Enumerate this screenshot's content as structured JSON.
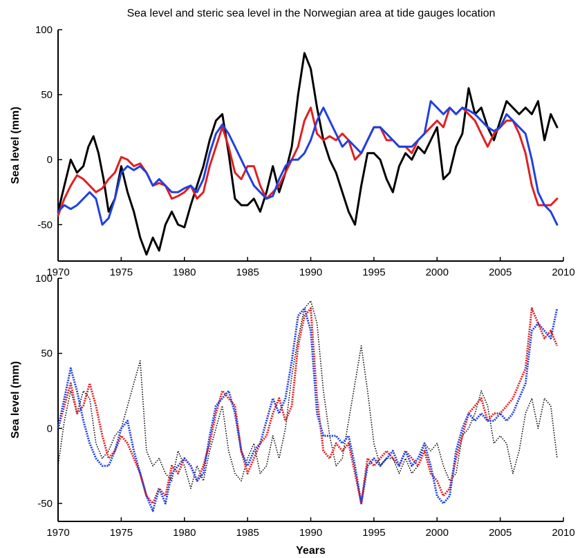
{
  "figure": {
    "title": "Sea level and steric sea level in the Norwegian area at tide gauges location"
  },
  "chart_data": [
    {
      "type": "line",
      "title": "Sea level and steric sea level in the Norwegian area at tide gauges location",
      "xlabel": "",
      "ylabel": "Sea level (mm)",
      "xlim": [
        1970,
        2010
      ],
      "ylim": [
        -78,
        100
      ],
      "xticks": [
        1970,
        1975,
        1980,
        1985,
        1990,
        1995,
        2000,
        2005,
        2010
      ],
      "yticks": [
        -50,
        0,
        50,
        100
      ],
      "grid": false,
      "series": [
        {
          "color": "#000000",
          "style": "solid",
          "x": [
            1970,
            1970.5,
            1971,
            1971.5,
            1972,
            1972.4,
            1972.8,
            1973.2,
            1973.6,
            1974,
            1974.5,
            1975,
            1975.5,
            1976,
            1976.5,
            1977,
            1977.5,
            1978,
            1978.5,
            1979,
            1979.5,
            1980,
            1980.5,
            1981,
            1981.5,
            1982,
            1982.5,
            1983,
            1983.5,
            1984,
            1984.5,
            1985,
            1985.5,
            1986,
            1986.5,
            1987,
            1987.5,
            1988,
            1988.5,
            1989,
            1989.5,
            1990,
            1990.5,
            1991,
            1991.5,
            1992,
            1992.5,
            1993,
            1993.5,
            1994,
            1994.5,
            1995,
            1995.5,
            1996,
            1996.5,
            1997,
            1997.5,
            1998,
            1998.5,
            1999,
            1999.5,
            2000,
            2000.5,
            2001,
            2001.5,
            2002,
            2002.5,
            2003,
            2003.5,
            2004,
            2004.5,
            2005,
            2005.5,
            2006,
            2006.5,
            2007,
            2007.5,
            2008,
            2008.5,
            2009,
            2009.5
          ],
          "values": [
            -40,
            -20,
            0,
            -10,
            -5,
            10,
            18,
            5,
            -15,
            -40,
            -30,
            -5,
            -25,
            -40,
            -60,
            -73,
            -60,
            -70,
            -50,
            -40,
            -50,
            -52,
            -35,
            -20,
            -5,
            15,
            30,
            35,
            5,
            -30,
            -35,
            -35,
            -30,
            -40,
            -25,
            -5,
            -25,
            -10,
            10,
            50,
            82,
            70,
            40,
            15,
            0,
            -10,
            -25,
            -40,
            -50,
            -20,
            5,
            5,
            0,
            -15,
            -25,
            -5,
            5,
            0,
            10,
            5,
            15,
            25,
            -15,
            -10,
            10,
            20,
            55,
            35,
            40,
            25,
            15,
            30,
            45,
            40,
            35,
            40,
            35,
            45,
            15,
            35,
            25
          ]
        },
        {
          "color": "#e02020",
          "style": "solid",
          "x": [
            1970,
            1970.5,
            1971,
            1971.5,
            1972,
            1972.5,
            1973,
            1973.5,
            1974,
            1974.5,
            1975,
            1975.5,
            1976,
            1976.5,
            1977,
            1977.5,
            1978,
            1978.5,
            1979,
            1979.5,
            1980,
            1980.5,
            1981,
            1981.5,
            1982,
            1982.5,
            1983,
            1983.5,
            1984,
            1984.5,
            1985,
            1985.5,
            1986,
            1986.5,
            1987,
            1987.5,
            1988,
            1988.5,
            1989,
            1989.5,
            1990,
            1990.5,
            1991,
            1991.5,
            1992,
            1992.5,
            1993,
            1993.5,
            1994,
            1994.5,
            1995,
            1995.5,
            1996,
            1996.5,
            1997,
            1997.5,
            1998,
            1998.5,
            1999,
            1999.5,
            2000,
            2000.5,
            2001,
            2001.5,
            2002,
            2002.5,
            2003,
            2003.5,
            2004,
            2004.5,
            2005,
            2005.5,
            2006,
            2006.5,
            2007,
            2007.5,
            2008,
            2008.5,
            2009,
            2009.5
          ],
          "values": [
            -43,
            -30,
            -20,
            -12,
            -15,
            -20,
            -25,
            -22,
            -15,
            -10,
            2,
            0,
            -5,
            -3,
            -10,
            -20,
            -18,
            -20,
            -30,
            -28,
            -25,
            -20,
            -30,
            -25,
            -5,
            10,
            25,
            10,
            -10,
            -15,
            -5,
            -5,
            -20,
            -30,
            -25,
            -20,
            -10,
            0,
            10,
            30,
            40,
            20,
            15,
            18,
            15,
            20,
            15,
            0,
            5,
            15,
            25,
            25,
            15,
            15,
            10,
            10,
            5,
            15,
            20,
            25,
            30,
            25,
            40,
            35,
            40,
            35,
            30,
            20,
            10,
            20,
            25,
            30,
            30,
            20,
            5,
            -20,
            -35,
            -35,
            -35,
            -30
          ]
        },
        {
          "color": "#2040e0",
          "style": "solid",
          "x": [
            1970,
            1970.5,
            1971,
            1971.5,
            1972,
            1972.5,
            1973,
            1973.5,
            1974,
            1974.5,
            1975,
            1975.5,
            1976,
            1976.5,
            1977,
            1977.5,
            1978,
            1978.5,
            1979,
            1979.5,
            1980,
            1980.5,
            1981,
            1981.5,
            1982,
            1982.5,
            1983,
            1983.5,
            1984,
            1984.5,
            1985,
            1985.5,
            1986,
            1986.5,
            1987,
            1987.5,
            1988,
            1988.5,
            1989,
            1989.5,
            1990,
            1990.5,
            1991,
            1991.5,
            1992,
            1992.5,
            1993,
            1993.5,
            1994,
            1994.5,
            1995,
            1995.5,
            1996,
            1996.5,
            1997,
            1997.5,
            1998,
            1998.5,
            1999,
            1999.5,
            2000,
            2000.5,
            2001,
            2001.5,
            2002,
            2002.5,
            2003,
            2003.5,
            2004,
            2004.5,
            2005,
            2005.5,
            2006,
            2006.5,
            2007,
            2007.5,
            2008,
            2008.5,
            2009,
            2009.5
          ],
          "values": [
            -40,
            -35,
            -38,
            -35,
            -30,
            -25,
            -30,
            -50,
            -45,
            -30,
            -10,
            -5,
            -8,
            -5,
            -10,
            -20,
            -15,
            -20,
            -25,
            -25,
            -22,
            -20,
            -25,
            -15,
            5,
            20,
            27,
            20,
            10,
            0,
            -10,
            -20,
            -25,
            -30,
            -28,
            -15,
            -5,
            0,
            0,
            5,
            15,
            30,
            40,
            30,
            20,
            10,
            15,
            10,
            5,
            15,
            25,
            25,
            20,
            15,
            10,
            10,
            10,
            15,
            20,
            45,
            40,
            35,
            40,
            35,
            40,
            38,
            35,
            30,
            25,
            22,
            25,
            35,
            30,
            25,
            20,
            0,
            -25,
            -35,
            -40,
            -50
          ]
        }
      ]
    },
    {
      "type": "line",
      "xlabel": "Years",
      "ylabel": "Sea level (mm)",
      "xlim": [
        1970,
        2010
      ],
      "ylim": [
        -62,
        100
      ],
      "xticks": [
        1970,
        1975,
        1980,
        1985,
        1990,
        1995,
        2000,
        2005,
        2010
      ],
      "yticks": [
        -50,
        0,
        50,
        100
      ],
      "grid": false,
      "series": [
        {
          "color": "#000000",
          "style": "dotted",
          "x": [
            1970,
            1970.5,
            1971,
            1971.5,
            1972,
            1972.5,
            1973,
            1973.5,
            1974,
            1974.5,
            1975,
            1975.5,
            1976,
            1976.5,
            1977,
            1977.5,
            1978,
            1978.5,
            1979,
            1979.5,
            1980,
            1980.5,
            1981,
            1981.5,
            1982,
            1982.5,
            1983,
            1983.5,
            1984,
            1984.5,
            1985,
            1985.5,
            1986,
            1986.5,
            1987,
            1987.5,
            1988,
            1988.5,
            1989,
            1989.5,
            1990,
            1990.5,
            1991,
            1991.5,
            1992,
            1992.5,
            1993,
            1993.5,
            1994,
            1994.5,
            1995,
            1995.5,
            1996,
            1996.5,
            1997,
            1997.5,
            1998,
            1998.5,
            1999,
            1999.5,
            2000,
            2000.5,
            2001,
            2001.5,
            2002,
            2002.5,
            2003,
            2003.5,
            2004,
            2004.5,
            2005,
            2005.5,
            2006,
            2006.5,
            2007,
            2007.5,
            2008,
            2008.5,
            2009,
            2009.5
          ],
          "values": [
            -25,
            5,
            25,
            10,
            25,
            20,
            -10,
            -20,
            -15,
            -5,
            0,
            15,
            30,
            45,
            -15,
            -25,
            -20,
            -30,
            -35,
            -15,
            -25,
            -40,
            -25,
            -35,
            -15,
            0,
            15,
            -15,
            -30,
            -35,
            -20,
            -10,
            -30,
            -25,
            -5,
            -20,
            0,
            35,
            60,
            80,
            85,
            70,
            25,
            -5,
            -25,
            -20,
            5,
            30,
            55,
            25,
            -10,
            -25,
            -20,
            -20,
            -30,
            -20,
            -30,
            -25,
            -10,
            -15,
            -10,
            -25,
            -35,
            -30,
            -5,
            0,
            10,
            25,
            15,
            -10,
            -5,
            -10,
            -30,
            -15,
            10,
            20,
            0,
            20,
            15,
            -20
          ]
        },
        {
          "color": "#e02020",
          "style": "dotted",
          "x": [
            1970,
            1970.5,
            1971,
            1971.5,
            1972,
            1972.5,
            1973,
            1973.5,
            1974,
            1974.5,
            1975,
            1975.5,
            1976,
            1976.5,
            1977,
            1977.5,
            1978,
            1978.5,
            1979,
            1979.5,
            1980,
            1980.5,
            1981,
            1981.5,
            1982,
            1982.5,
            1983,
            1983.5,
            1984,
            1984.5,
            1985,
            1985.5,
            1986,
            1986.5,
            1987,
            1987.5,
            1988,
            1988.5,
            1989,
            1989.5,
            1990,
            1990.5,
            1991,
            1991.5,
            1992,
            1992.5,
            1993,
            1993.5,
            1994,
            1994.5,
            1995,
            1995.5,
            1996,
            1996.5,
            1997,
            1997.5,
            1998,
            1998.5,
            1999,
            1999.5,
            2000,
            2000.5,
            2001,
            2001.5,
            2002,
            2002.5,
            2003,
            2003.5,
            2004,
            2004.5,
            2005,
            2005.5,
            2006,
            2006.5,
            2007,
            2007.5,
            2008,
            2008.5,
            2009,
            2009.5
          ],
          "values": [
            0,
            15,
            30,
            10,
            15,
            30,
            15,
            -5,
            -20,
            -15,
            -5,
            -10,
            -20,
            -30,
            -45,
            -50,
            -40,
            -45,
            -25,
            -30,
            -20,
            -25,
            -35,
            -25,
            -10,
            10,
            25,
            20,
            15,
            -15,
            -30,
            -20,
            -10,
            -5,
            10,
            20,
            5,
            15,
            55,
            75,
            80,
            20,
            -15,
            -20,
            -10,
            -15,
            -10,
            -30,
            -50,
            -20,
            -25,
            -20,
            -15,
            -20,
            -25,
            -15,
            -20,
            -25,
            -15,
            -30,
            -35,
            -45,
            -40,
            -20,
            -5,
            10,
            15,
            20,
            5,
            10,
            10,
            15,
            20,
            30,
            40,
            80,
            70,
            60,
            65,
            55
          ]
        },
        {
          "color": "#2040e0",
          "style": "dotted",
          "x": [
            1970,
            1970.5,
            1971,
            1971.5,
            1972,
            1972.5,
            1973,
            1973.5,
            1974,
            1974.5,
            1975,
            1975.5,
            1976,
            1976.5,
            1977,
            1977.5,
            1978,
            1978.5,
            1979,
            1979.5,
            1980,
            1980.5,
            1981,
            1981.5,
            1982,
            1982.5,
            1983,
            1983.5,
            1984,
            1984.5,
            1985,
            1985.5,
            1986,
            1986.5,
            1987,
            1987.5,
            1988,
            1988.5,
            1989,
            1989.5,
            1990,
            1990.5,
            1991,
            1991.5,
            1992,
            1992.5,
            1993,
            1993.5,
            1994,
            1994.5,
            1995,
            1995.5,
            1996,
            1996.5,
            1997,
            1997.5,
            1998,
            1998.5,
            1999,
            1999.5,
            2000,
            2000.5,
            2001,
            2001.5,
            2002,
            2002.5,
            2003,
            2003.5,
            2004,
            2004.5,
            2005,
            2005.5,
            2006,
            2006.5,
            2007,
            2007.5,
            2008,
            2008.5,
            2009,
            2009.5
          ],
          "values": [
            0,
            20,
            40,
            25,
            5,
            -10,
            -20,
            -25,
            -25,
            -15,
            0,
            5,
            -15,
            -30,
            -45,
            -55,
            -40,
            -50,
            -30,
            -25,
            -20,
            -25,
            -35,
            -30,
            -5,
            15,
            20,
            25,
            10,
            -15,
            -25,
            -15,
            -10,
            5,
            20,
            10,
            20,
            45,
            75,
            80,
            65,
            10,
            -5,
            -5,
            -5,
            -10,
            -5,
            -25,
            -50,
            -25,
            -20,
            -25,
            -20,
            -15,
            -25,
            -15,
            -25,
            -20,
            -10,
            -25,
            -45,
            -50,
            -45,
            -15,
            0,
            10,
            5,
            10,
            5,
            5,
            10,
            5,
            10,
            20,
            30,
            65,
            70,
            65,
            60,
            80
          ]
        }
      ]
    }
  ]
}
